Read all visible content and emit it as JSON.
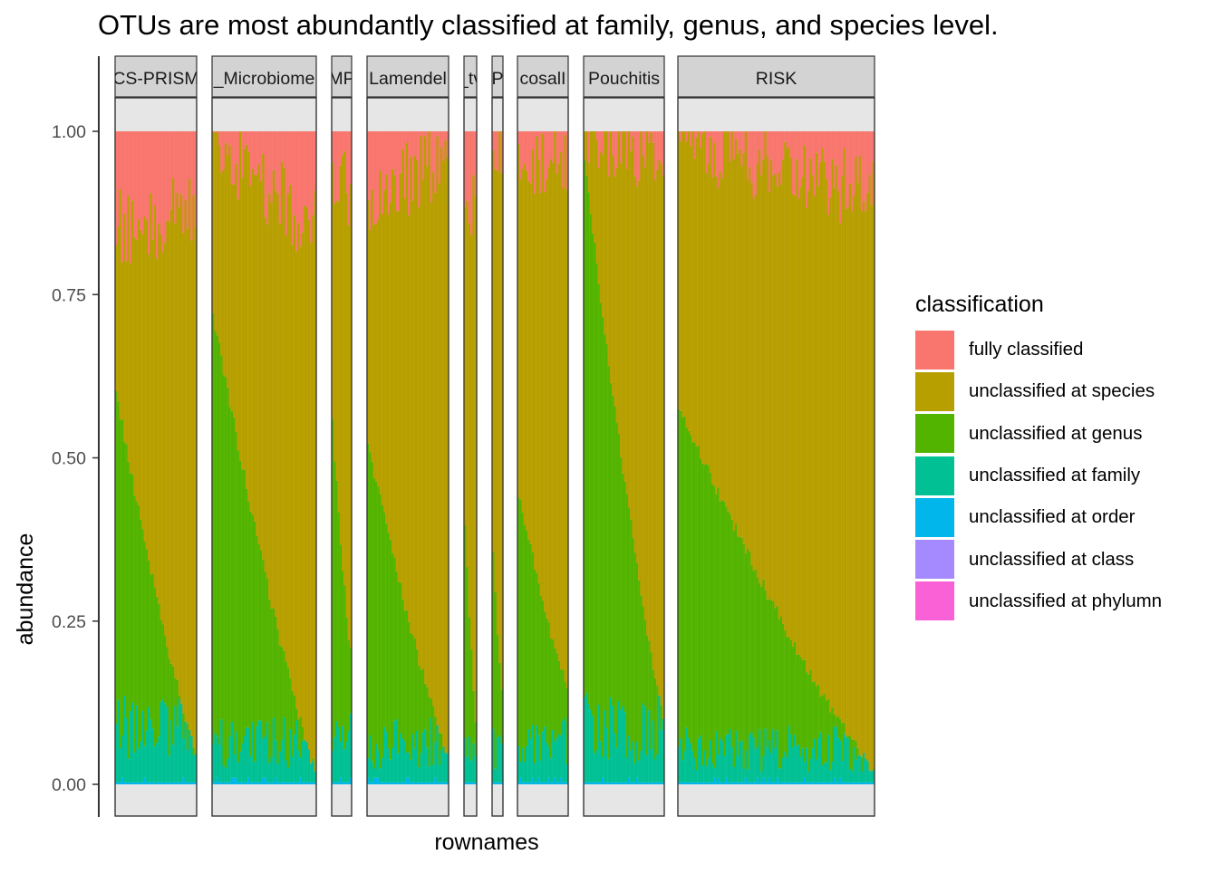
{
  "chart_data": {
    "type": "bar",
    "stacked": true,
    "title": "OTUs are most abundantly classified at family, genus, and species level.",
    "xlabel": "rownames",
    "ylabel": "abundance",
    "ylim": [
      0,
      1
    ],
    "yticks": [
      "0.00",
      "0.25",
      "0.50",
      "0.75",
      "1.00"
    ],
    "yticks_values": [
      0,
      0.25,
      0.5,
      0.75,
      1.0
    ],
    "legend_title": "classification",
    "legend_position": "right",
    "series": [
      {
        "name": "fully classified",
        "color": "#F8766D"
      },
      {
        "name": "unclassified at species",
        "color": "#B79F00"
      },
      {
        "name": "unclassified at genus",
        "color": "#53B400"
      },
      {
        "name": "unclassified at family",
        "color": "#00C094"
      },
      {
        "name": "unclassified at order",
        "color": "#00B6EB"
      },
      {
        "name": "unclassified at class",
        "color": "#A58AFF"
      },
      {
        "name": "unclassified at phylumn",
        "color": "#FB61D7"
      }
    ],
    "facets": [
      {
        "label": "CS-PRISM",
        "n_samples": 40,
        "genus_start": 0.6,
        "genus_end": 0.05,
        "species_start": 0.85,
        "species_end": 0.88,
        "family_mean": 0.08
      },
      {
        "label": "_Microbiome",
        "n_samples": 50,
        "genus_start": 0.72,
        "genus_end": 0.02,
        "species_start": 0.99,
        "species_end": 0.85,
        "family_mean": 0.06
      },
      {
        "label": "MP",
        "n_samples": 10,
        "genus_start": 0.55,
        "genus_end": 0.2,
        "species_start": 0.95,
        "species_end": 0.9,
        "family_mean": 0.08
      },
      {
        "label": "Lamendel",
        "n_samples": 40,
        "genus_start": 0.52,
        "genus_end": 0.05,
        "species_start": 0.9,
        "species_end": 0.96,
        "family_mean": 0.06
      },
      {
        "label": "_tv",
        "n_samples": 6,
        "genus_start": 0.4,
        "genus_end": 0.1,
        "species_start": 0.9,
        "species_end": 0.9,
        "family_mean": 0.05
      },
      {
        "label": "P",
        "n_samples": 5,
        "genus_start": 0.35,
        "genus_end": 0.15,
        "species_start": 0.95,
        "species_end": 0.95,
        "family_mean": 0.05
      },
      {
        "label": "cosalI",
        "n_samples": 25,
        "genus_start": 0.45,
        "genus_end": 0.15,
        "species_start": 0.95,
        "species_end": 0.97,
        "family_mean": 0.06
      },
      {
        "label": "Pouchitis",
        "n_samples": 40,
        "genus_start": 0.95,
        "genus_end": 0.1,
        "species_start": 1.0,
        "species_end": 0.95,
        "family_mean": 0.08
      },
      {
        "label": "RISK",
        "n_samples": 100,
        "genus_start": 0.58,
        "genus_end": 0.02,
        "species_start": 0.99,
        "species_end": 0.9,
        "family_mean": 0.05
      }
    ]
  }
}
